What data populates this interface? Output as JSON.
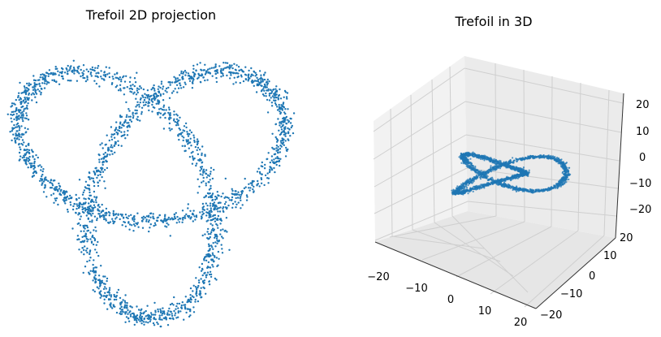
{
  "chart_data": [
    {
      "type": "scatter",
      "title": "Trefoil 2D projection",
      "xlabel": "",
      "ylabel": "",
      "axes_visible": false,
      "xlim": [
        -26,
        26
      ],
      "ylim": [
        -26,
        26
      ],
      "marker_color": "#1f77b4",
      "point_count": 2500,
      "noise_sd": 0.9,
      "curve": "x = 10*sin(t) + 20*sin(2t), y = 10*cos(t) - 20*cos(2t), z = -10*sin(3t), t in [0, 2π]"
    },
    {
      "type": "scatter",
      "projection": "3d",
      "title": "Trefoil in 3D",
      "xlabel": "",
      "ylabel": "",
      "zlabel": "",
      "xlim": [
        -25,
        25
      ],
      "ylim": [
        -25,
        25
      ],
      "zlim": [
        -22,
        22
      ],
      "x_ticks": [
        -20,
        -10,
        0,
        10,
        20
      ],
      "y_ticks": [
        -20,
        -10,
        0,
        10,
        20
      ],
      "z_ticks": [
        -20,
        -10,
        0,
        10,
        20
      ],
      "x_tick_labels": [
        "−20",
        "−10",
        "0",
        "10",
        "20"
      ],
      "y_tick_labels": [
        "−20",
        "−10",
        "0",
        "10",
        "20"
      ],
      "z_tick_labels": [
        "−20",
        "−10",
        "0",
        "10",
        "20"
      ],
      "grid": true,
      "pane_color": "#f2f2f2",
      "grid_color": "#cfcfcf",
      "marker_color": "#1f77b4",
      "point_count": 2500
    }
  ]
}
